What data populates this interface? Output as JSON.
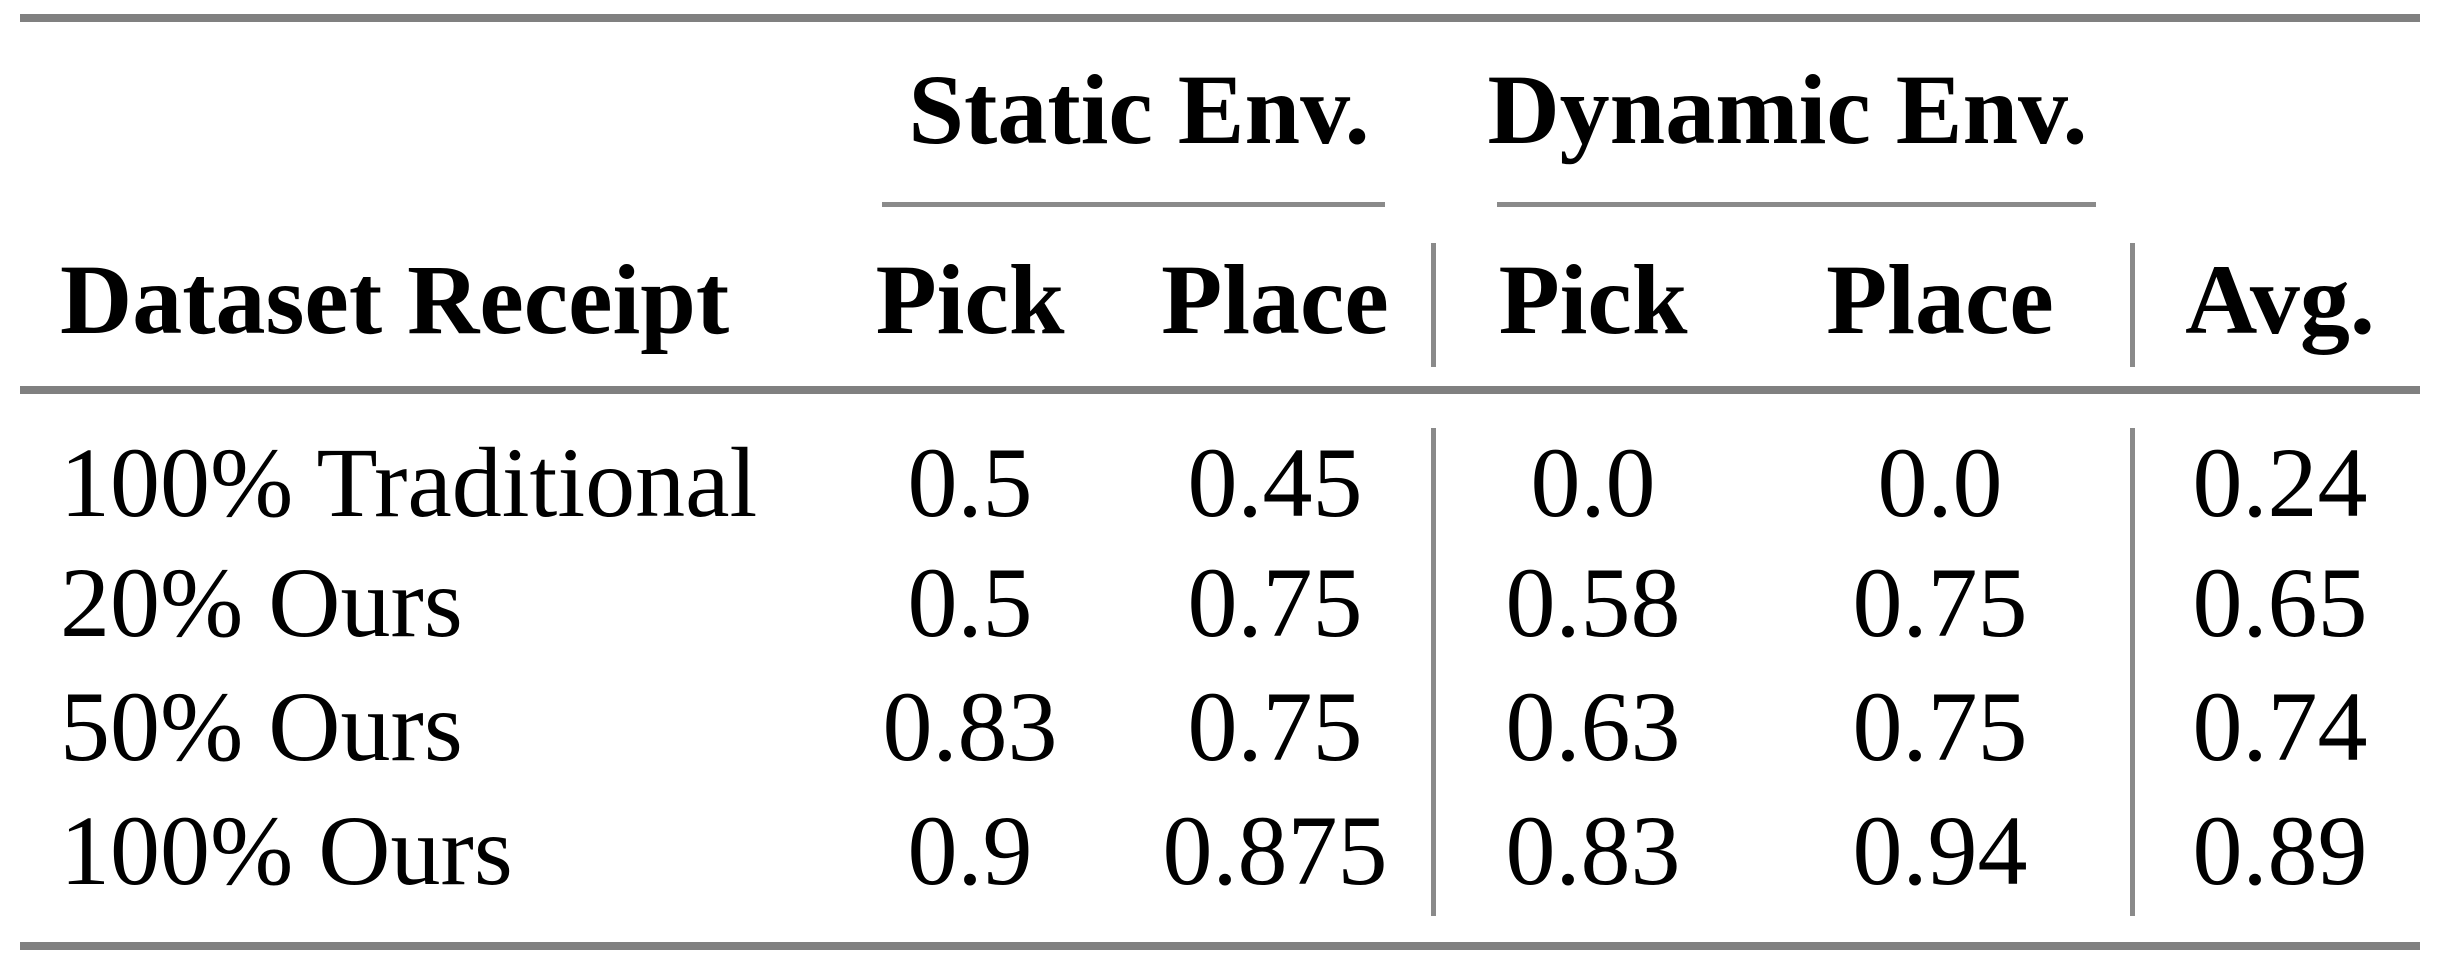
{
  "table": {
    "group_headers": {
      "static": "Static Env.",
      "dynamic": "Dynamic Env."
    },
    "columns": {
      "label": "Dataset Receipt",
      "static_pick": "Pick",
      "static_place": "Place",
      "dynamic_pick": "Pick",
      "dynamic_place": "Place",
      "avg": "Avg."
    },
    "rows": [
      {
        "label": "100% Traditional",
        "static_pick": "0.5",
        "static_place": "0.45",
        "dynamic_pick": "0.0",
        "dynamic_place": "0.0",
        "avg": "0.24"
      },
      {
        "label": "20% Ours",
        "static_pick": "0.5",
        "static_place": "0.75",
        "dynamic_pick": "0.58",
        "dynamic_place": "0.75",
        "avg": "0.65"
      },
      {
        "label": "50% Ours",
        "static_pick": "0.83",
        "static_place": "0.75",
        "dynamic_pick": "0.63",
        "dynamic_place": "0.75",
        "avg": "0.74"
      },
      {
        "label": "100% Ours",
        "static_pick": "0.9",
        "static_place": "0.875",
        "dynamic_pick": "0.83",
        "dynamic_place": "0.94",
        "avg": "0.89"
      }
    ],
    "colors": {
      "rule_gray": "#808080",
      "separator_gray": "#8a8a8a",
      "text": "#000000",
      "background": "#ffffff"
    }
  }
}
